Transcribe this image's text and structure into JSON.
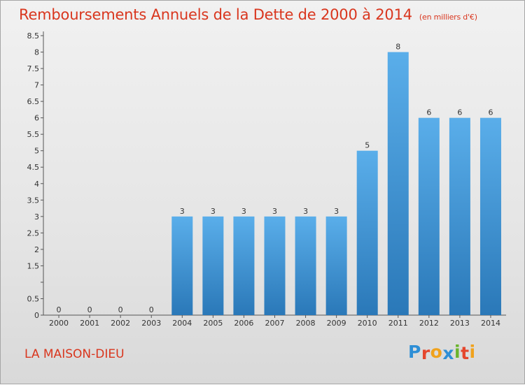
{
  "page": {
    "title": "Remboursements Annuels de la Dette de 2000 à 2014",
    "subtitle": "(en milliers d'€)",
    "place": "LA MAISON-DIEU",
    "logo_letters": [
      "P",
      "r",
      "o",
      "x",
      "i",
      "t",
      "i"
    ],
    "logo_colors": [
      "#2e8fd6",
      "#e5462d",
      "#f0a21c",
      "#2e8fd6",
      "#6ab42d",
      "#e5462d",
      "#f0a21c"
    ]
  },
  "chart_data": {
    "type": "bar",
    "title": "Remboursements Annuels de la Dette de 2000 à 2014",
    "subtitle": "(en milliers d'€)",
    "xlabel": "",
    "ylabel": "",
    "categories": [
      "2000",
      "2001",
      "2002",
      "2003",
      "2004",
      "2005",
      "2006",
      "2007",
      "2008",
      "2009",
      "2010",
      "2011",
      "2012",
      "2013",
      "2014"
    ],
    "values": [
      0,
      0,
      0,
      0,
      3,
      3,
      3,
      3,
      3,
      3,
      5,
      8,
      6,
      6,
      6
    ],
    "value_labels": [
      "0",
      "0",
      "0",
      "0",
      "3",
      "3",
      "3",
      "3",
      "3",
      "3",
      "5",
      "8",
      "6",
      "6",
      "6"
    ],
    "ylim": [
      0,
      8.5
    ],
    "yticks": [
      0,
      0.5,
      1,
      1.5,
      2,
      2.5,
      3,
      3.5,
      4,
      4.5,
      5,
      5.5,
      6,
      6.5,
      7,
      7.5,
      8,
      8.5
    ],
    "ytick_labels": [
      "0",
      "0.5",
      "",
      "1.5",
      "2",
      "2.5",
      "3",
      "3.5",
      "4",
      "4.5",
      "5",
      "5.5",
      "6",
      "6.5",
      "7",
      "7.5",
      "8",
      "8.5"
    ],
    "grid": false,
    "bar_color_top": "#5aaeea",
    "bar_color_bottom": "#2a78b8"
  }
}
